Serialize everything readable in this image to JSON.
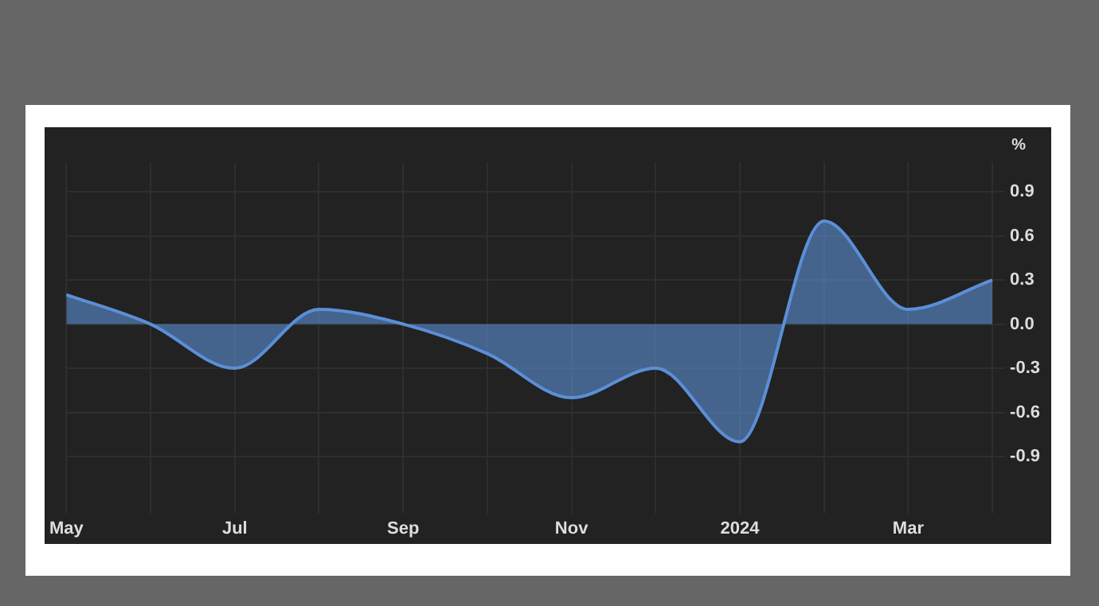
{
  "chart_data": {
    "type": "area",
    "ylabel": "%",
    "categories": [
      "May",
      null,
      "Jul",
      null,
      "Sep",
      null,
      "Nov",
      null,
      "2024",
      null,
      "Mar",
      null
    ],
    "series": [
      {
        "color": "#5b8fd6",
        "values": [
          0.2,
          0.0,
          -0.3,
          0.1,
          0.0,
          -0.2,
          -0.5,
          -0.3,
          -0.8,
          0.7,
          0.1,
          0.3
        ]
      }
    ],
    "ylim": [
      -1.2,
      1.1
    ],
    "yticks": [
      -0.9,
      -0.6,
      -0.3,
      {
        "value": 0,
        "label": "0.0"
      },
      0.3,
      0.6,
      0.9
    ],
    "grid": true,
    "legend": false
  }
}
